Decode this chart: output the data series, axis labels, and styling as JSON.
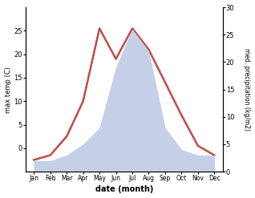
{
  "months": [
    "Jan",
    "Feb",
    "Mar",
    "Apr",
    "May",
    "Jun",
    "Jul",
    "Aug",
    "Sep",
    "Oct",
    "Nov",
    "Dec"
  ],
  "temperature": [
    -2.5,
    -1.5,
    2.5,
    10.0,
    25.5,
    19.0,
    25.5,
    21.0,
    14.0,
    7.0,
    0.5,
    -1.5
  ],
  "precipitation": [
    2,
    2,
    3,
    5,
    8,
    19,
    26,
    22,
    8,
    4,
    3,
    3
  ],
  "temp_color": "#c0504d",
  "precip_fill_color": "#c5cfe8",
  "precip_fill_alpha": 1.0,
  "ylabel_left": "max temp (C)",
  "ylabel_right": "med. precipitation (kg/m2)",
  "xlabel": "date (month)",
  "ylim_left": [
    -5,
    30
  ],
  "ylim_right": [
    0,
    30
  ],
  "yticks_left": [
    0,
    5,
    10,
    15,
    20,
    25
  ],
  "yticks_right": [
    0,
    5,
    10,
    15,
    20,
    25,
    30
  ],
  "bg_color": "#ffffff",
  "line_width": 1.6
}
